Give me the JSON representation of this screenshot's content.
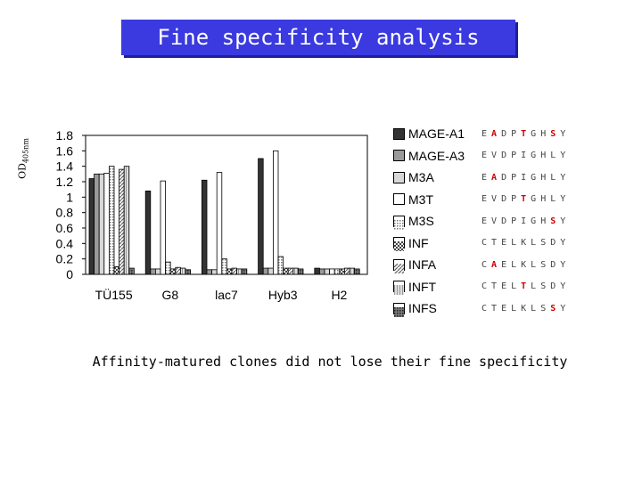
{
  "title": "Fine specificity analysis",
  "ylabel": {
    "main": "OD",
    "sub": "405nm"
  },
  "caption": "Affinity-matured clones did not lose their fine specificity",
  "colors": {
    "title_bg": "#3a3ae0",
    "series": [
      "#333333",
      "#9a9a9a",
      "#d8d8d8",
      "#ffffff",
      "#c4c4c4",
      "#bbbbbb",
      "#b0b0b0",
      "#cfcfcf",
      "#8a8a8a"
    ]
  },
  "legend": [
    {
      "name": "MAGE-A1",
      "sequence": "EADPTGHSY",
      "highlight": [
        1,
        4,
        7
      ]
    },
    {
      "name": "MAGE-A3",
      "sequence": "EVDPIGHLY",
      "highlight": []
    },
    {
      "name": "M3A",
      "sequence": "EADPIGHLY",
      "highlight": [
        1
      ]
    },
    {
      "name": "M3T",
      "sequence": "EVDPTGHLY",
      "highlight": [
        4
      ]
    },
    {
      "name": "M3S",
      "sequence": "EVDPIGHSY",
      "highlight": [
        7
      ]
    },
    {
      "name": "INF",
      "sequence": "CTELKLSDY",
      "highlight": []
    },
    {
      "name": "INFA",
      "sequence": "CAELKLSDY",
      "highlight": [
        1
      ]
    },
    {
      "name": "INFT",
      "sequence": "CTELTLSDY",
      "highlight": [
        4
      ]
    },
    {
      "name": "INFS",
      "sequence": "CTELKLSSY",
      "highlight": [
        7
      ]
    }
  ],
  "chart_data": {
    "type": "bar",
    "categories": [
      "TÜ155",
      "G8",
      "lac7",
      "Hyb3",
      "H2"
    ],
    "ylim": [
      0,
      1.8
    ],
    "yticks": [
      "1.8",
      "1.6",
      "1.4",
      "1.2",
      "1",
      "0.8",
      "0.6",
      "0.4",
      "0.2",
      "0"
    ],
    "grid": false,
    "legend_position": "right",
    "series": [
      {
        "name": "MAGE-A1",
        "values": [
          1.24,
          1.08,
          1.22,
          1.5,
          0.08
        ]
      },
      {
        "name": "MAGE-A3",
        "values": [
          1.3,
          0.07,
          0.06,
          0.08,
          0.07
        ]
      },
      {
        "name": "M3A",
        "values": [
          1.3,
          0.07,
          0.06,
          0.08,
          0.07
        ]
      },
      {
        "name": "M3T",
        "values": [
          1.31,
          1.21,
          1.32,
          1.6,
          0.07
        ]
      },
      {
        "name": "M3S",
        "values": [
          1.4,
          0.16,
          0.2,
          0.23,
          0.07
        ]
      },
      {
        "name": "INF",
        "values": [
          0.1,
          0.07,
          0.07,
          0.08,
          0.07
        ]
      },
      {
        "name": "INFA",
        "values": [
          1.36,
          0.09,
          0.08,
          0.08,
          0.08
        ]
      },
      {
        "name": "INFT",
        "values": [
          1.4,
          0.08,
          0.07,
          0.08,
          0.08
        ]
      },
      {
        "name": "INFS",
        "values": [
          0.08,
          0.06,
          0.07,
          0.07,
          0.07
        ]
      }
    ]
  }
}
